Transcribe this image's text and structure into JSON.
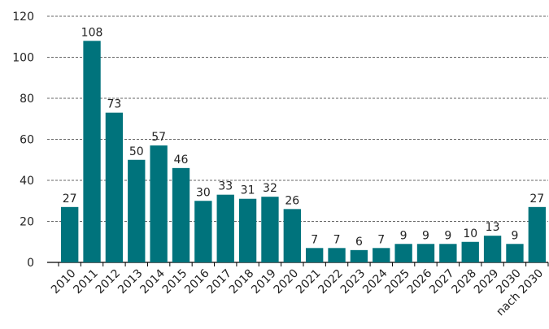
{
  "chart_data": {
    "type": "bar",
    "categories": [
      "2010",
      "2011",
      "2012",
      "2013",
      "2014",
      "2015",
      "2016",
      "2017",
      "2018",
      "2019",
      "2020",
      "2021",
      "2022",
      "2023",
      "2024",
      "2025",
      "2026",
      "2027",
      "2028",
      "2029",
      "2030",
      "nach 2030"
    ],
    "values": [
      27,
      108,
      73,
      50,
      57,
      46,
      30,
      33,
      31,
      32,
      26,
      7,
      7,
      6,
      7,
      9,
      9,
      9,
      10,
      13,
      9,
      27
    ],
    "color": "#00737c",
    "ylim": [
      0,
      120
    ],
    "yticks": [
      0,
      20,
      40,
      60,
      80,
      100,
      120
    ],
    "grid": true
  }
}
